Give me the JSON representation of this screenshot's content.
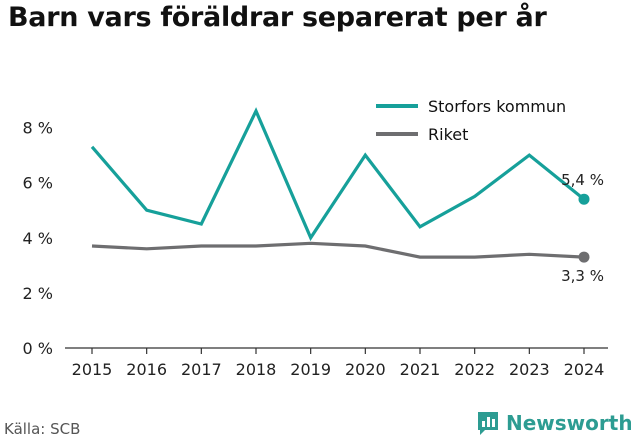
{
  "title": "Barn vars föräldrar separerat per år",
  "source": "Källa: SCB",
  "brand": {
    "name": "Newsworthy",
    "icon": "bar-chart-logo-icon",
    "color": "#2d9c92"
  },
  "chart_data": {
    "type": "line",
    "title": "Barn vars föräldrar separerat per år",
    "xlabel": "",
    "ylabel": "",
    "categories": [
      "2015",
      "2016",
      "2017",
      "2018",
      "2019",
      "2020",
      "2021",
      "2022",
      "2023",
      "2024"
    ],
    "ylim": [
      0,
      9
    ],
    "yticks": [
      0,
      2,
      4,
      6,
      8
    ],
    "ytick_labels": [
      "0 %",
      "2 %",
      "4 %",
      "6 %",
      "8 %"
    ],
    "grid": false,
    "legend_position": "top-right",
    "series": [
      {
        "name": "Storfors kommun",
        "color": "#16a09a",
        "values": [
          7.3,
          5.0,
          4.5,
          8.6,
          4.0,
          7.0,
          4.4,
          5.5,
          7.0,
          5.4
        ],
        "end_label": "5,4 %"
      },
      {
        "name": "Riket",
        "color": "#6e6e70",
        "values": [
          3.7,
          3.6,
          3.7,
          3.7,
          3.8,
          3.7,
          3.3,
          3.3,
          3.4,
          3.3
        ],
        "end_label": "3,3 %"
      }
    ]
  }
}
